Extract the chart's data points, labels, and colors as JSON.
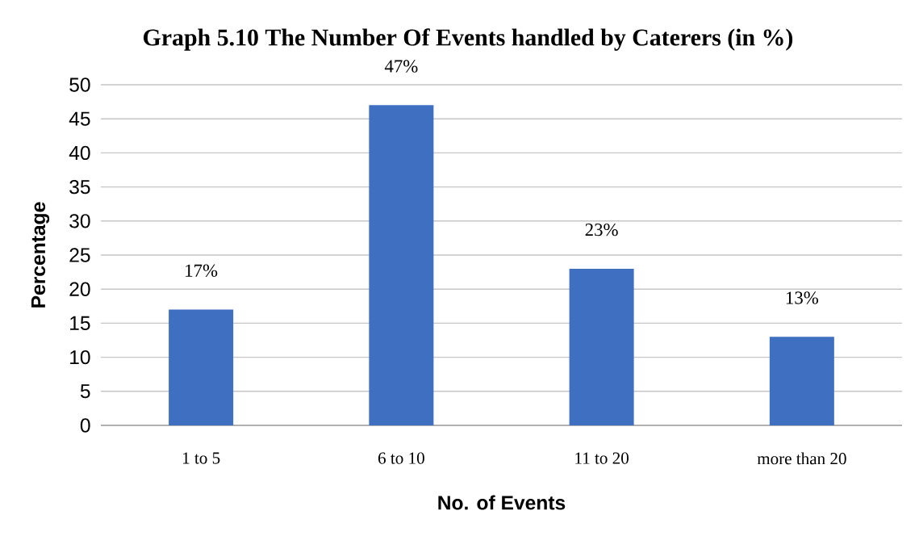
{
  "chart_data": {
    "type": "bar",
    "title": "Graph 5.10  The Number Of Events handled by Caterers (in %)",
    "xlabel": "No. of Events",
    "ylabel": "Percentage",
    "categories": [
      "1 to 5",
      "6 to 10",
      "11 to 20",
      "more than 20"
    ],
    "values": [
      17,
      47,
      23,
      13
    ],
    "value_labels": [
      "17%",
      "47%",
      "23%",
      "13%"
    ],
    "color": "#3f6fc1",
    "ylim": [
      0,
      50
    ],
    "yticks": [
      0,
      5,
      10,
      15,
      20,
      25,
      30,
      35,
      40,
      45,
      50
    ],
    "grid": "y"
  }
}
